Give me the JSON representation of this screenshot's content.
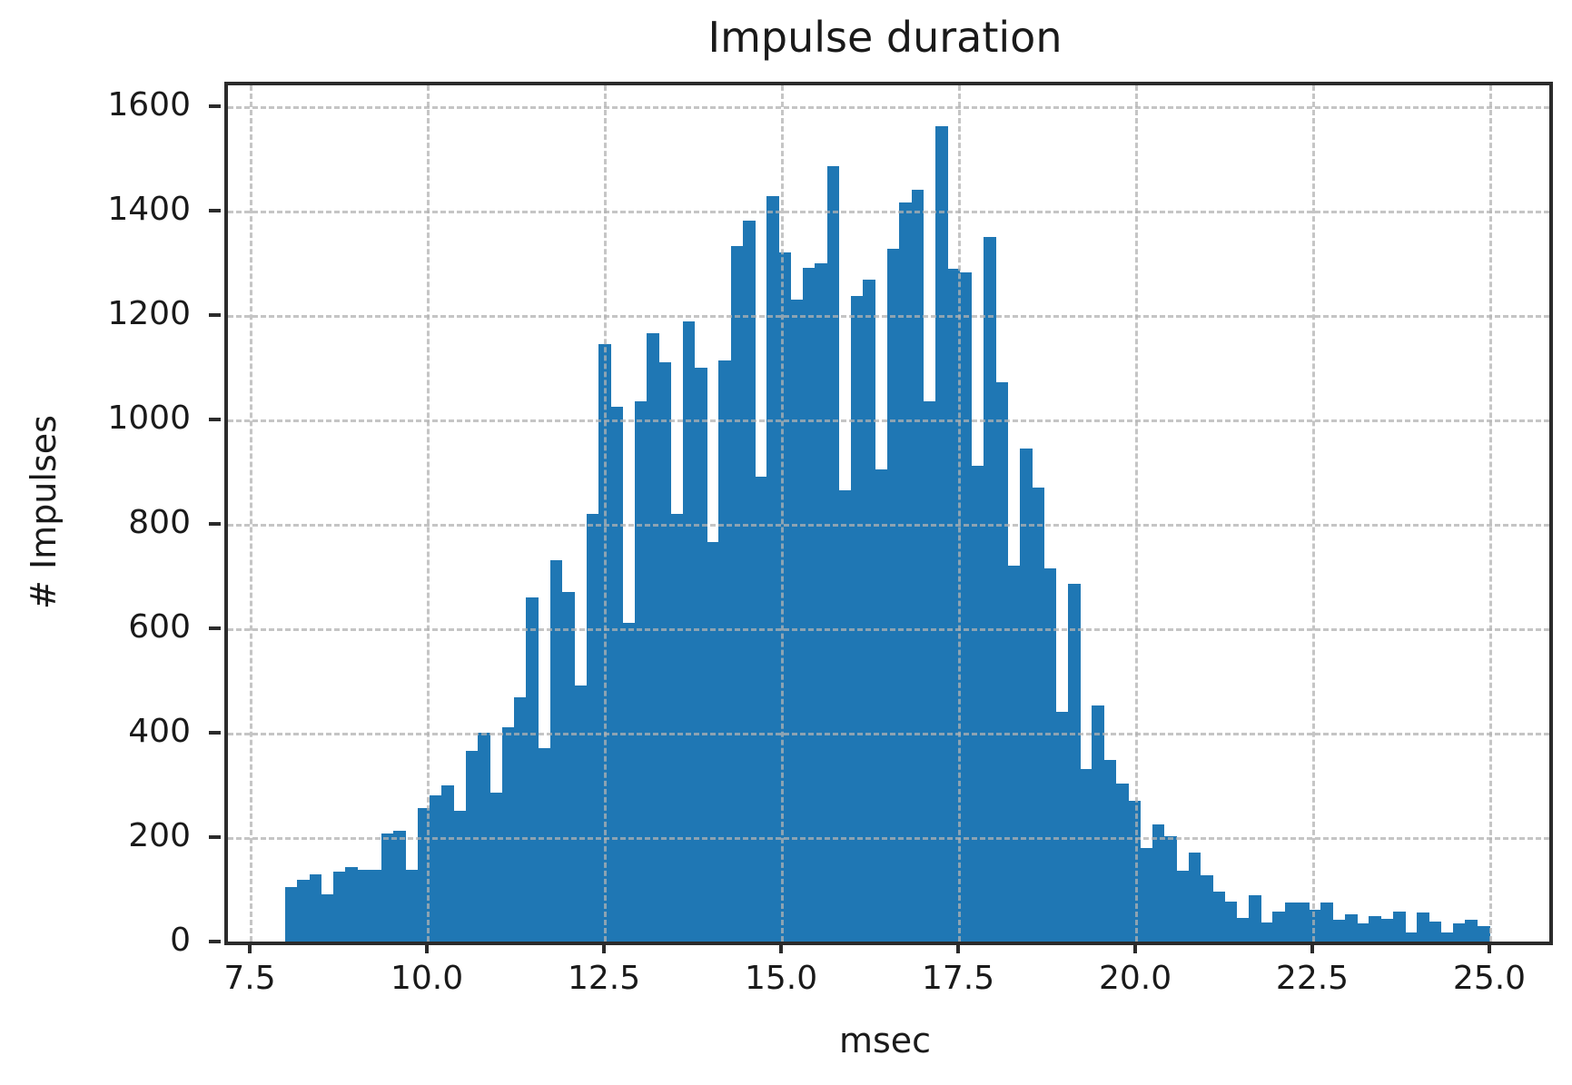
{
  "figure": {
    "background": "#ffffff",
    "text_color": "#1a1a1a",
    "axis_color": "#2b2b2b",
    "grid_color": "#b2b2b2"
  },
  "chart_data": {
    "type": "bar",
    "subtype": "histogram",
    "title": "Impulse duration",
    "xlabel": "msec",
    "ylabel": "# Impulses",
    "bar_color": "#1f77b4",
    "grid": true,
    "grid_style": "dashed",
    "legend": "none",
    "bin_start": 8.0,
    "bin_width": 0.17,
    "xlim": [
      7.192,
      25.846
    ],
    "ylim": [
      0,
      1640
    ],
    "xticks": [
      7.5,
      10.0,
      12.5,
      15.0,
      17.5,
      20.0,
      22.5,
      25.0
    ],
    "xtick_labels": [
      "7.5",
      "10.0",
      "12.5",
      "15.0",
      "17.5",
      "20.0",
      "22.5",
      "25.0"
    ],
    "yticks": [
      0,
      200,
      400,
      600,
      800,
      1000,
      1200,
      1400,
      1600
    ],
    "ytick_labels": [
      "0",
      "200",
      "400",
      "600",
      "800",
      "1000",
      "1200",
      "1400",
      "1600"
    ],
    "counts": [
      105,
      118,
      128,
      91,
      134,
      143,
      137,
      137,
      207,
      212,
      138,
      256,
      280,
      300,
      250,
      365,
      400,
      285,
      410,
      467,
      660,
      370,
      730,
      670,
      490,
      820,
      1145,
      1025,
      610,
      1035,
      1165,
      1110,
      820,
      1188,
      1100,
      766,
      1113,
      1333,
      1381,
      890,
      1427,
      1320,
      1230,
      1290,
      1300,
      1485,
      865,
      1236,
      1267,
      905,
      1327,
      1416,
      1440,
      1034,
      1561,
      1289,
      1282,
      912,
      1349,
      1072,
      720,
      945,
      870,
      715,
      440,
      686,
      330,
      453,
      347,
      302,
      269,
      179,
      224,
      202,
      135,
      170,
      127,
      96,
      77,
      46,
      88,
      36,
      58,
      74,
      74,
      61,
      74,
      42,
      52,
      35,
      49,
      43,
      58,
      17,
      55,
      38,
      17,
      34,
      42,
      30
    ]
  }
}
